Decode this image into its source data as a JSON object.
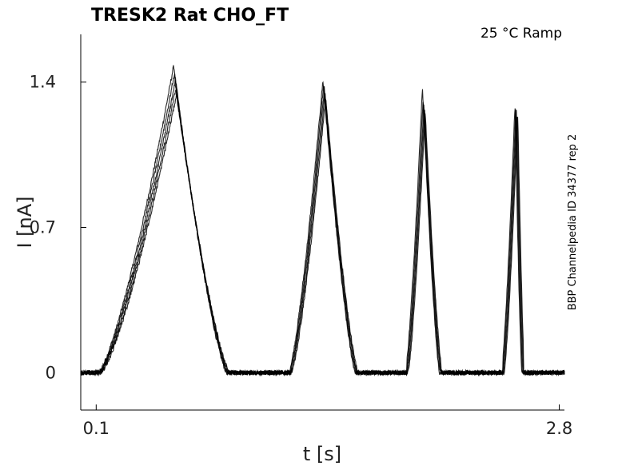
{
  "chart_data": {
    "type": "line",
    "title": "TRESK2  Rat  CHO_FT",
    "condition": "25 °C  Ramp",
    "side_label": "BBP Channelpedia ID 34377 rep 2",
    "xlabel": "t [s]",
    "ylabel": "I [nA]",
    "xlim": [
      0.01,
      2.83
    ],
    "ylim": [
      -0.18,
      1.63
    ],
    "x_ticks": [
      0.1,
      2.8
    ],
    "x_tick_labels": [
      "0.1",
      "2.8"
    ],
    "y_ticks": [
      0,
      0.7,
      1.4
    ],
    "y_tick_labels": [
      "0",
      "0.7",
      "1.4"
    ],
    "grid": false,
    "line_color": "#000000",
    "n_traces": 5,
    "baseline_nA": 0.0,
    "pulses": [
      {
        "start_s": 0.12,
        "peak_s": 0.56,
        "end_s": 0.87,
        "peak_nA": [
          1.48,
          1.44,
          1.4,
          1.37,
          1.34
        ]
      },
      {
        "start_s": 1.23,
        "peak_s": 1.43,
        "end_s": 1.62,
        "peak_nA": [
          1.41,
          1.39,
          1.37,
          1.35,
          1.33
        ]
      },
      {
        "start_s": 1.91,
        "peak_s": 2.01,
        "end_s": 2.11,
        "peak_nA": [
          1.38,
          1.33,
          1.3,
          1.28,
          1.26
        ]
      },
      {
        "start_s": 2.47,
        "peak_s": 2.55,
        "end_s": 2.59,
        "peak_nA": [
          1.3,
          1.28,
          1.27,
          1.26,
          1.25
        ]
      }
    ]
  }
}
